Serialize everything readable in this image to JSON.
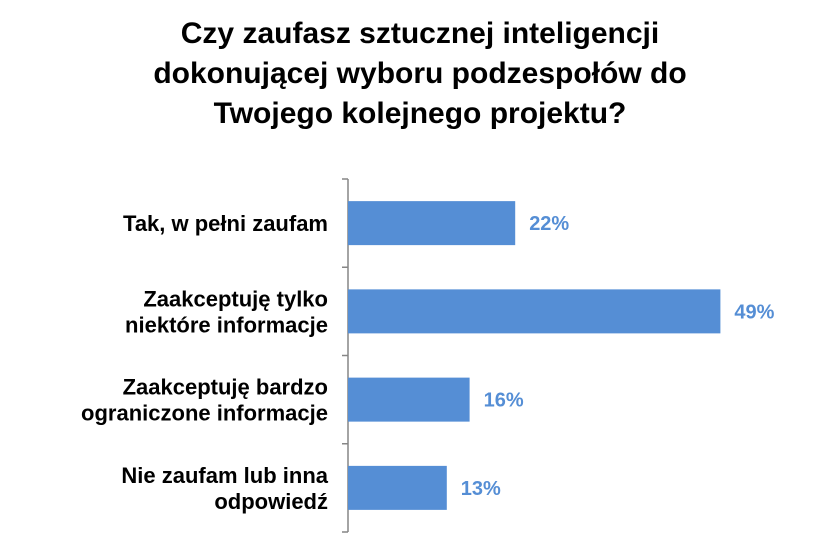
{
  "chart_data": {
    "type": "bar",
    "orientation": "horizontal",
    "title": "Czy zaufasz sztucznej inteligencji\ndokonującej wyboru podzespołów do\nTwojego kolejnego projektu?",
    "categories": [
      "Tak, w pełni zaufam",
      "Zaakceptuję tylko\nniektóre informacje",
      "Zaakceptuję bardzo\nograniczone informacje",
      "Nie zaufam lub inna\nodpowiedź"
    ],
    "values": [
      22,
      49,
      16,
      13
    ],
    "value_labels": [
      "22%",
      "49%",
      "16%",
      "13%"
    ],
    "unit": "%",
    "xlim": [
      0,
      50
    ],
    "grid": false,
    "legend": "none",
    "bar_color": "#558ED5",
    "label_color": "#558ED5"
  }
}
